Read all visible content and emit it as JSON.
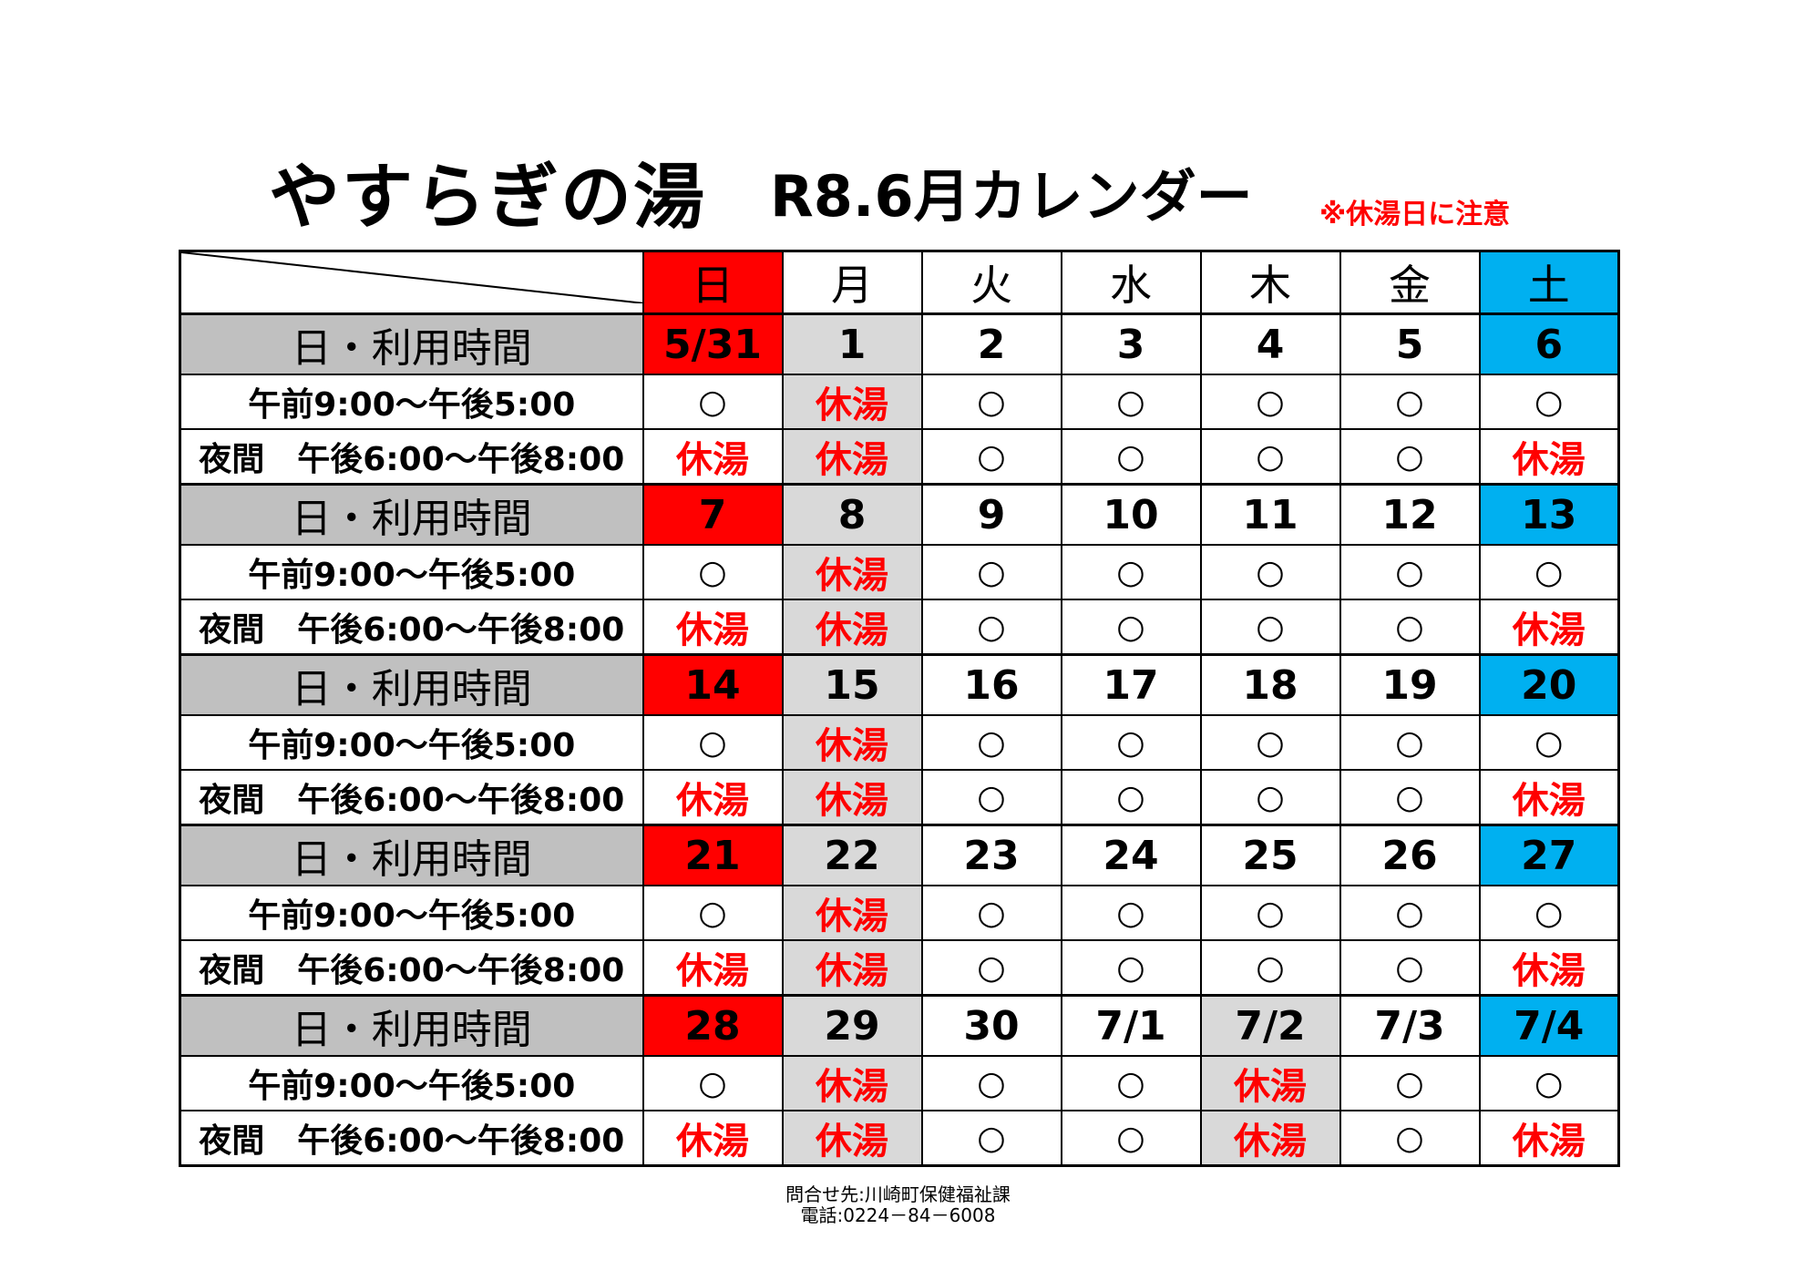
{
  "title": "やすらぎの湯",
  "subtitle": "R8.6月カレンダー",
  "notice": "※休湯日に注意",
  "weekdays": [
    "日",
    "月",
    "火",
    "水",
    "木",
    "金",
    "土"
  ],
  "row_label": "日・利用時間",
  "time_slots": [
    "午前9:00～午後5:00",
    "夜間　午後6:00～午後8:00"
  ],
  "weeks": [
    {
      "dates": [
        "5/31",
        "1",
        "2",
        "3",
        "4",
        "5",
        "6"
      ],
      "day": [
        "○",
        "休湯",
        "○",
        "○",
        "○",
        "○",
        "○"
      ],
      "night": [
        "休湯",
        "休湯",
        "○",
        "○",
        "○",
        "○",
        "休湯"
      ]
    },
    {
      "dates": [
        "7",
        "8",
        "9",
        "10",
        "11",
        "12",
        "13"
      ],
      "day": [
        "○",
        "休湯",
        "○",
        "○",
        "○",
        "○",
        "○"
      ],
      "night": [
        "休湯",
        "休湯",
        "○",
        "○",
        "○",
        "○",
        "休湯"
      ]
    },
    {
      "dates": [
        "14",
        "15",
        "16",
        "17",
        "18",
        "19",
        "20"
      ],
      "day": [
        "○",
        "休湯",
        "○",
        "○",
        "○",
        "○",
        "○"
      ],
      "night": [
        "休湯",
        "休湯",
        "○",
        "○",
        "○",
        "○",
        "休湯"
      ]
    },
    {
      "dates": [
        "21",
        "22",
        "23",
        "24",
        "25",
        "26",
        "27"
      ],
      "day": [
        "○",
        "休湯",
        "○",
        "○",
        "○",
        "○",
        "○"
      ],
      "night": [
        "休湯",
        "休湯",
        "○",
        "○",
        "○",
        "○",
        "休湯"
      ]
    },
    {
      "dates": [
        "28",
        "29",
        "30",
        "7/1",
        "7/2",
        "7/3",
        "7/4"
      ],
      "day": [
        "○",
        "休湯",
        "○",
        "○",
        "休湯",
        "○",
        "○"
      ],
      "night": [
        "休湯",
        "休湯",
        "○",
        "○",
        "休湯",
        "○",
        "休湯"
      ]
    }
  ],
  "footer": {
    "contact": "問合せ先:川崎町保健福祉課",
    "phone": "電話:0224－84－6008"
  },
  "colors": {
    "sunday": "#ff0000",
    "saturday": "#00b0f0",
    "closed_day": "#d9d9d9",
    "label_bg": "#c0c0c0",
    "closed_text": "#ff0000"
  }
}
